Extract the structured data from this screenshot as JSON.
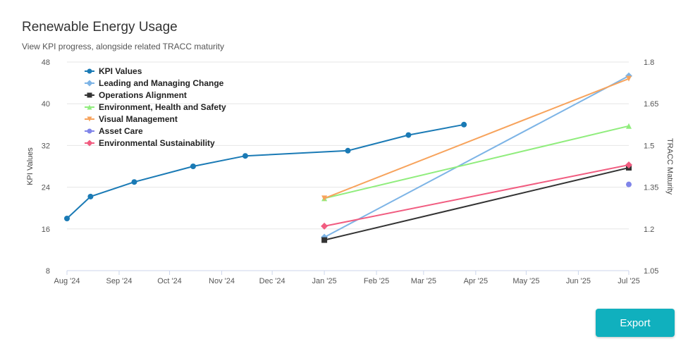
{
  "header": {
    "title": "Renewable Energy Usage",
    "subtitle": "View KPI progress, alongside related TRACC maturity"
  },
  "actions": {
    "export_label": "Export"
  },
  "chart_data": {
    "type": "line",
    "title": "Renewable Energy Usage",
    "subtitle": "View KPI progress, alongside related TRACC maturity",
    "x_labels": [
      "Aug '24",
      "Sep '24",
      "Oct '24",
      "Nov '24",
      "Dec '24",
      "Jan '25",
      "Feb '25",
      "Mar '25",
      "Apr '25",
      "May '25",
      "Jun '25",
      "Jul '25"
    ],
    "y_left": {
      "label": "KPI Values",
      "lim": [
        8,
        48
      ],
      "ticks": [
        8,
        16,
        24,
        32,
        40,
        48
      ]
    },
    "y_right": {
      "label": "TRACC Maturity",
      "lim": [
        1.05,
        1.8
      ],
      "ticks": [
        "1.05",
        "1.2",
        "1.35",
        "1.5",
        "1.65",
        "1.8"
      ]
    },
    "grid": true,
    "legend_position": "top-left",
    "series": [
      {
        "name": "KPI Values",
        "axis": "left",
        "color": "#1a7ab5",
        "marker": "circle",
        "points": [
          {
            "x": "2024-08-01",
            "y": 18
          },
          {
            "x": "2024-08-15",
            "y": 22.2
          },
          {
            "x": "2024-09-10",
            "y": 25
          },
          {
            "x": "2024-10-15",
            "y": 28
          },
          {
            "x": "2024-11-15",
            "y": 30
          },
          {
            "x": "2025-01-15",
            "y": 31
          },
          {
            "x": "2025-02-20",
            "y": 34
          },
          {
            "x": "2025-03-25",
            "y": 36
          }
        ]
      },
      {
        "name": "Leading and Managing Change",
        "axis": "right",
        "color": "#7db4e6",
        "marker": "diamond",
        "points": [
          {
            "x": "2025-01-01",
            "y": 1.17
          },
          {
            "x": "2025-07-01",
            "y": 1.75
          }
        ]
      },
      {
        "name": "Operations Alignment",
        "axis": "right",
        "color": "#333333",
        "marker": "square",
        "points": [
          {
            "x": "2025-01-01",
            "y": 1.16
          },
          {
            "x": "2025-07-01",
            "y": 1.42
          }
        ]
      },
      {
        "name": "Environment, Health and Safety",
        "axis": "right",
        "color": "#90ed7d",
        "marker": "triangle",
        "points": [
          {
            "x": "2025-01-01",
            "y": 1.31
          },
          {
            "x": "2025-07-01",
            "y": 1.57
          }
        ]
      },
      {
        "name": "Visual Management",
        "axis": "right",
        "color": "#f7a35c",
        "marker": "triangle-down",
        "points": [
          {
            "x": "2025-01-01",
            "y": 1.31
          },
          {
            "x": "2025-07-01",
            "y": 1.74
          }
        ]
      },
      {
        "name": "Asset Care",
        "axis": "right",
        "color": "#8085e9",
        "marker": "circle",
        "points": [
          {
            "x": "2025-07-01",
            "y": 1.36
          }
        ]
      },
      {
        "name": "Environmental Sustainability",
        "axis": "right",
        "color": "#f15c80",
        "marker": "diamond",
        "points": [
          {
            "x": "2025-01-01",
            "y": 1.21
          },
          {
            "x": "2025-07-01",
            "y": 1.43
          }
        ]
      }
    ]
  }
}
